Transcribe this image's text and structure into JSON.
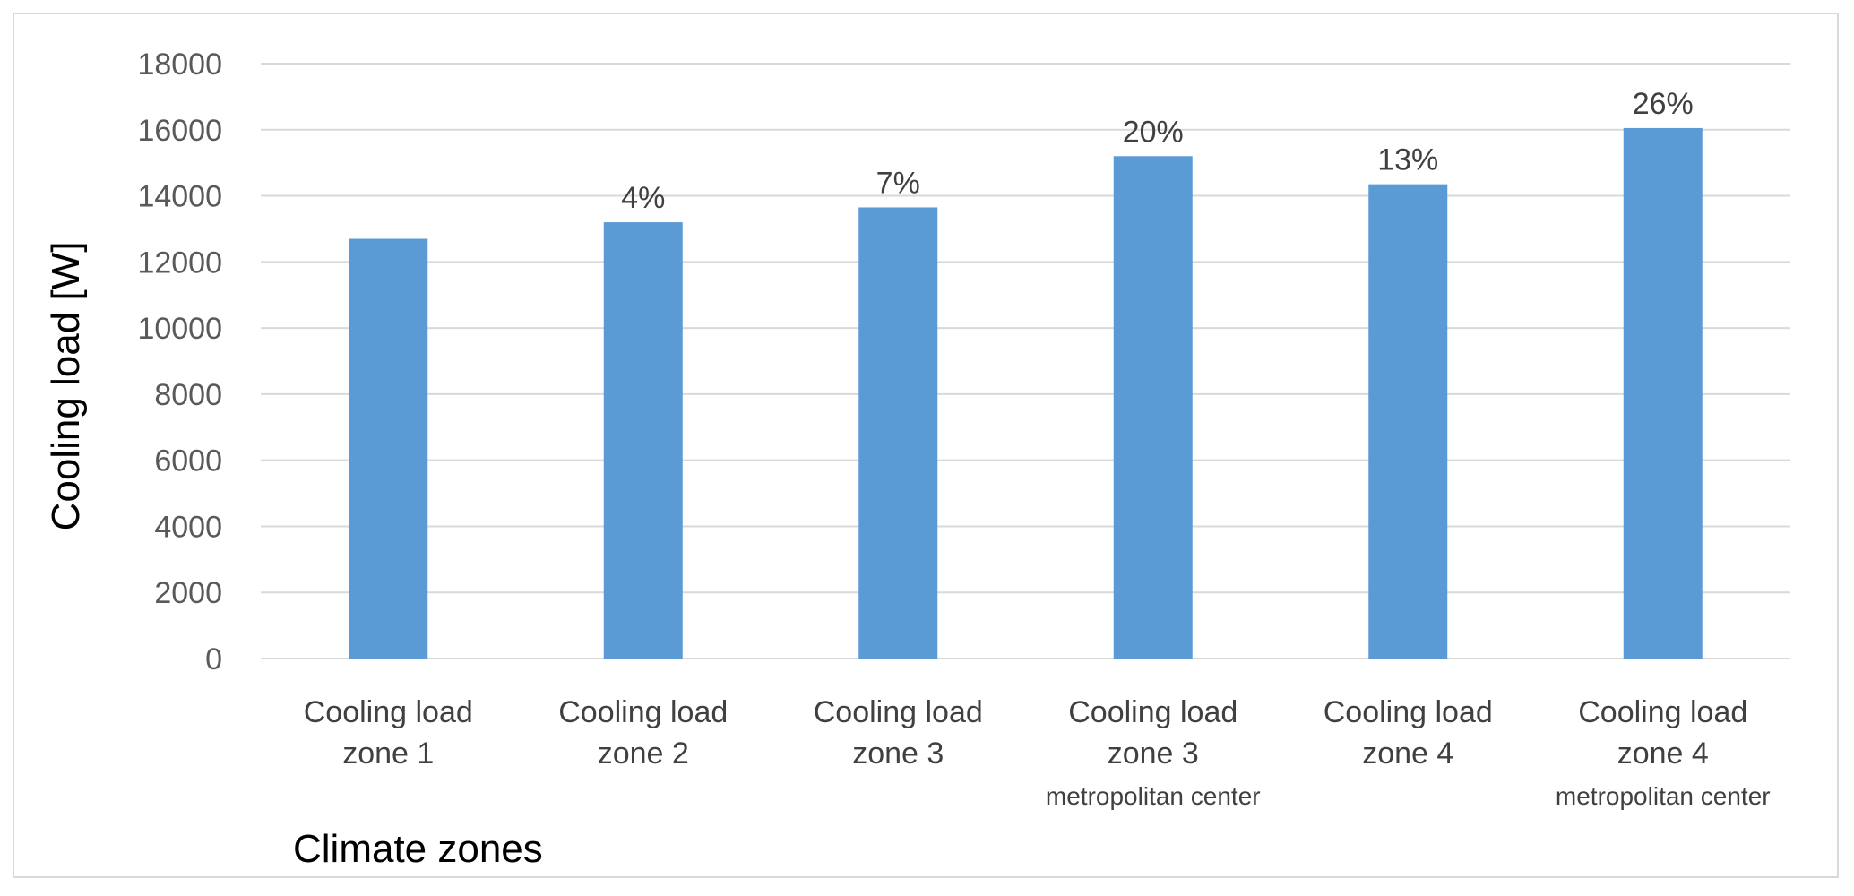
{
  "chart_data": {
    "type": "bar",
    "xlabel": "Climate zones",
    "ylabel": "Cooling load [W]",
    "ylim": [
      0,
      18000
    ],
    "yticks": [
      0,
      2000,
      4000,
      6000,
      8000,
      10000,
      12000,
      14000,
      16000,
      18000
    ],
    "grid": true,
    "legend": "none",
    "categories": [
      {
        "lines": [
          "Cooling load",
          "zone 1"
        ],
        "sub": ""
      },
      {
        "lines": [
          "Cooling load",
          "zone 2"
        ],
        "sub": ""
      },
      {
        "lines": [
          "Cooling load",
          "zone 3"
        ],
        "sub": ""
      },
      {
        "lines": [
          "Cooling load",
          "zone 3"
        ],
        "sub": "metropolitan center"
      },
      {
        "lines": [
          "Cooling load",
          "zone 4"
        ],
        "sub": ""
      },
      {
        "lines": [
          "Cooling load",
          "zone 4"
        ],
        "sub": "metropolitan center"
      }
    ],
    "values": [
      12700,
      13200,
      13650,
      15200,
      14350,
      16050
    ],
    "data_labels": [
      "",
      "4%",
      "7%",
      "20%",
      "13%",
      "26%"
    ],
    "colors": {
      "bar": "#5b9bd5"
    }
  }
}
